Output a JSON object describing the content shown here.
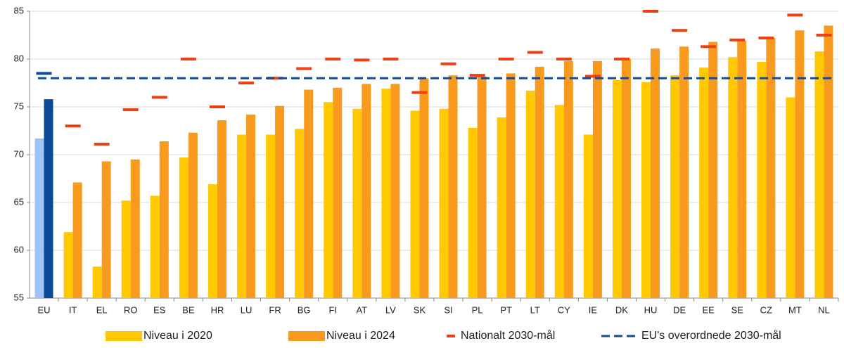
{
  "chart_data": {
    "type": "bar",
    "categories": [
      "EU",
      "IT",
      "EL",
      "RO",
      "ES",
      "BE",
      "HR",
      "LU",
      "FR",
      "BG",
      "FI",
      "AT",
      "LV",
      "SK",
      "SI",
      "PL",
      "PT",
      "LT",
      "CY",
      "IE",
      "DK",
      "HU",
      "DE",
      "EE",
      "SE",
      "CZ",
      "MT",
      "NL"
    ],
    "series": [
      {
        "name": "Niveau i 2020",
        "type": "bar",
        "color": "#ffc800",
        "first_color": "#9dc3f7",
        "values": [
          71.7,
          61.9,
          58.3,
          65.2,
          65.7,
          69.7,
          66.9,
          72.1,
          72.1,
          72.7,
          75.5,
          74.8,
          76.9,
          74.6,
          74.8,
          72.8,
          73.9,
          76.7,
          75.2,
          72.1,
          77.8,
          77.6,
          78.3,
          79.1,
          80.2,
          79.7,
          76.0,
          80.8
        ]
      },
      {
        "name": "Niveau i 2024",
        "type": "bar",
        "color": "#f79a1e",
        "first_color": "#0b4a96",
        "values": [
          75.8,
          67.1,
          69.3,
          69.5,
          71.4,
          72.3,
          73.6,
          74.2,
          75.1,
          76.8,
          77.0,
          77.4,
          77.4,
          78.0,
          78.3,
          78.2,
          78.5,
          79.2,
          79.8,
          79.8,
          80.0,
          81.1,
          81.3,
          81.8,
          81.9,
          82.2,
          83.0,
          83.5
        ]
      },
      {
        "name": "Nationalt 2030-mål",
        "type": "marker",
        "color": "#ee4015",
        "first_color": "#0b4a96",
        "values": [
          78.5,
          73.0,
          71.1,
          74.7,
          76.0,
          80.0,
          75.0,
          77.5,
          78.0,
          79.0,
          80.0,
          79.9,
          80.0,
          76.5,
          79.5,
          78.3,
          80.0,
          80.7,
          80.0,
          78.2,
          80.0,
          85.0,
          83.0,
          81.3,
          82.0,
          82.2,
          84.6,
          82.5
        ]
      },
      {
        "name": "EU's overordnede 2030-mål",
        "type": "hline",
        "color": "#1a4a8a",
        "value": 78
      }
    ],
    "ylim": [
      55,
      85
    ],
    "yticks": [
      55,
      60,
      65,
      70,
      75,
      80,
      85
    ],
    "grid": true,
    "legend": "bottom"
  }
}
